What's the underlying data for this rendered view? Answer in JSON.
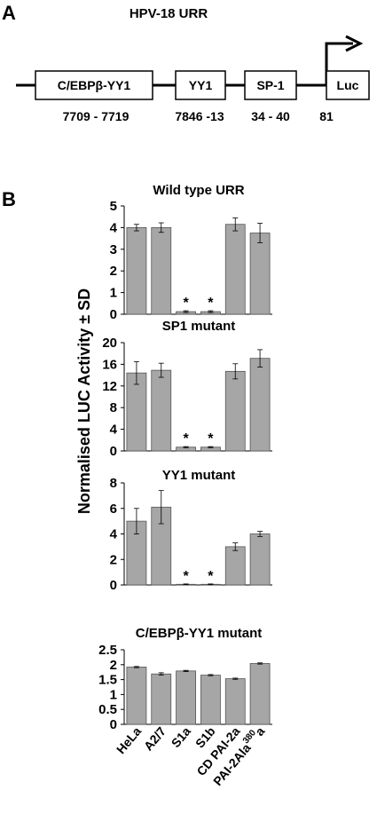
{
  "panel_a": {
    "letter": "A",
    "title": "HPV-18 URR",
    "elements": [
      {
        "label": "C/EBPβ-YY1",
        "position": "7709 - 7719"
      },
      {
        "label": "YY1",
        "position": "7846 -13"
      },
      {
        "label": "SP-1",
        "position": "34 - 40"
      },
      {
        "label": "Luc",
        "position": "81"
      }
    ]
  },
  "panel_b": {
    "letter": "B",
    "ylabel": "Normalised LUC Activity ± SD"
  },
  "chart_data": [
    {
      "type": "bar",
      "title": "Wild type URR",
      "categories": [
        "HeLa",
        "A2/7",
        "S1a",
        "S1b",
        "CD PAI-2a",
        "PAI-2Ala380a"
      ],
      "values": [
        4.0,
        4.0,
        0.12,
        0.12,
        4.15,
        3.75
      ],
      "errors": [
        0.15,
        0.22,
        0.04,
        0.04,
        0.3,
        0.45
      ],
      "significant": [
        false,
        false,
        true,
        true,
        false,
        false
      ],
      "ylim": [
        0,
        5
      ],
      "yticks": [
        "0",
        "1",
        "2",
        "3",
        "4",
        "5"
      ]
    },
    {
      "type": "bar",
      "title": "SP1 mutant",
      "categories": [
        "HeLa",
        "A2/7",
        "S1a",
        "S1b",
        "CD PAI-2a",
        "PAI-2Ala380a"
      ],
      "values": [
        14.4,
        14.9,
        0.7,
        0.7,
        14.7,
        17.1
      ],
      "errors": [
        2.1,
        1.3,
        0.1,
        0.1,
        1.4,
        1.6
      ],
      "significant": [
        false,
        false,
        true,
        true,
        false,
        false
      ],
      "ylim": [
        0,
        20
      ],
      "yticks": [
        "0",
        "4",
        "8",
        "12",
        "16",
        "20"
      ]
    },
    {
      "type": "bar",
      "title": "YY1 mutant",
      "categories": [
        "HeLa",
        "A2/7",
        "S1a",
        "S1b",
        "CD PAI-2a",
        "PAI-2Ala380a"
      ],
      "values": [
        5.0,
        6.1,
        0.05,
        0.05,
        3.0,
        4.0
      ],
      "errors": [
        1.0,
        1.3,
        0.03,
        0.03,
        0.3,
        0.2
      ],
      "significant": [
        false,
        false,
        true,
        true,
        false,
        false
      ],
      "ylim": [
        0,
        8
      ],
      "yticks": [
        "0",
        "2",
        "4",
        "6",
        "8"
      ]
    },
    {
      "type": "bar",
      "title": "C/EBPβ-YY1 mutant",
      "categories": [
        "HeLa",
        "A2/7",
        "S1a",
        "S1b",
        "CD PAI-2a",
        "PAI-2Ala380a"
      ],
      "values": [
        1.92,
        1.69,
        1.79,
        1.65,
        1.53,
        2.04
      ],
      "errors": [
        0.02,
        0.04,
        0.02,
        0.02,
        0.02,
        0.02
      ],
      "significant": [
        false,
        false,
        false,
        false,
        false,
        false
      ],
      "ylim": [
        0,
        2.5
      ],
      "yticks": [
        "0",
        "0.5",
        "1",
        "1.5",
        "2",
        "2.5"
      ]
    }
  ],
  "significance_marker": "*",
  "x_labels": [
    {
      "main": "HeLa",
      "sup": "",
      "tail": ""
    },
    {
      "main": "A2/7",
      "sup": "",
      "tail": ""
    },
    {
      "main": "S1a",
      "sup": "",
      "tail": ""
    },
    {
      "main": "S1b",
      "sup": "",
      "tail": ""
    },
    {
      "main": "CD PAI-2a",
      "sup": "",
      "tail": ""
    },
    {
      "main": "PAI-2Ala",
      "sup": "380",
      "tail": "a"
    }
  ],
  "colors": {
    "bar_fill": "#a6a6a6",
    "bar_stroke": "#555555",
    "axis": "#000000"
  }
}
